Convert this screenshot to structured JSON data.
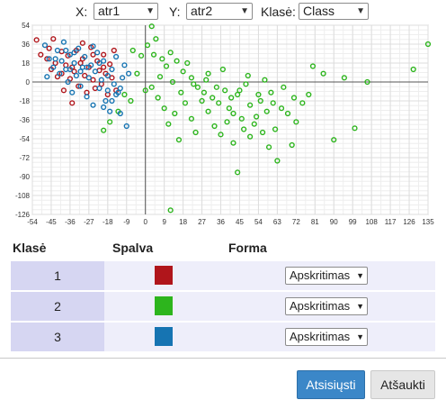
{
  "controls": {
    "x_label": "X:",
    "x_value": "atr1",
    "y_label": "Y:",
    "y_value": "atr2",
    "class_label": "Klasė:",
    "class_value": "Class"
  },
  "chart_data": {
    "type": "scatter",
    "xlim": [
      -54,
      135
    ],
    "ylim": [
      -126,
      54
    ],
    "x_ticks": [
      -54,
      -45,
      -36,
      -27,
      -18,
      -9,
      0,
      9,
      18,
      27,
      36,
      45,
      54,
      63,
      72,
      81,
      90,
      99,
      108,
      117,
      126,
      135
    ],
    "y_ticks": [
      54,
      36,
      18,
      0,
      -18,
      -36,
      -54,
      -72,
      -90,
      -108,
      -126
    ],
    "grid": true,
    "series": [
      {
        "class": "1",
        "color": "#b0151b",
        "points": [
          [
            -52,
            40
          ],
          [
            -50,
            26
          ],
          [
            -47,
            22
          ],
          [
            -45,
            12
          ],
          [
            -44,
            41
          ],
          [
            -43,
            18
          ],
          [
            -42,
            5
          ],
          [
            -40,
            29
          ],
          [
            -39,
            -8
          ],
          [
            -38,
            16
          ],
          [
            -37,
            25
          ],
          [
            -36,
            3
          ],
          [
            -35,
            -20
          ],
          [
            -34,
            10
          ],
          [
            -33,
            30
          ],
          [
            -32,
            -4
          ],
          [
            -31,
            18
          ],
          [
            -30,
            22
          ],
          [
            -29,
            6
          ],
          [
            -28,
            -10
          ],
          [
            -27,
            14
          ],
          [
            -26,
            33
          ],
          [
            -25,
            2
          ],
          [
            -24,
            -6
          ],
          [
            -23,
            20
          ],
          [
            -22,
            11
          ],
          [
            -21,
            -2
          ],
          [
            -20,
            26
          ],
          [
            -19,
            8
          ],
          [
            -18,
            -12
          ],
          [
            -17,
            17
          ],
          [
            -16,
            4
          ],
          [
            -15,
            30
          ],
          [
            -14,
            -8
          ],
          [
            -40,
            8
          ],
          [
            -46,
            32
          ],
          [
            -30,
            37
          ],
          [
            -35,
            14
          ],
          [
            -25,
            26
          ],
          [
            -20,
            14
          ]
        ]
      },
      {
        "class": "2",
        "color": "#2db51d",
        "points": [
          [
            2,
            60
          ],
          [
            3,
            53
          ],
          [
            5,
            41
          ],
          [
            1,
            35
          ],
          [
            -2,
            25
          ],
          [
            -6,
            30
          ],
          [
            4,
            26
          ],
          [
            8,
            22
          ],
          [
            10,
            15
          ],
          [
            12,
            28
          ],
          [
            15,
            20
          ],
          [
            18,
            10
          ],
          [
            20,
            18
          ],
          [
            22,
            4
          ],
          [
            25,
            -5
          ],
          [
            28,
            -10
          ],
          [
            30,
            8
          ],
          [
            32,
            -15
          ],
          [
            35,
            -20
          ],
          [
            38,
            -8
          ],
          [
            40,
            -25
          ],
          [
            42,
            -30
          ],
          [
            44,
            -12
          ],
          [
            46,
            -35
          ],
          [
            48,
            -2
          ],
          [
            50,
            -22
          ],
          [
            52,
            -40
          ],
          [
            55,
            -18
          ],
          [
            58,
            -28
          ],
          [
            60,
            -10
          ],
          [
            62,
            -45
          ],
          [
            65,
            -25
          ],
          [
            68,
            -30
          ],
          [
            70,
            -60
          ],
          [
            72,
            -38
          ],
          [
            75,
            -20
          ],
          [
            78,
            -12
          ],
          [
            80,
            15
          ],
          [
            85,
            8
          ],
          [
            90,
            -55
          ],
          [
            95,
            4
          ],
          [
            100,
            -44
          ],
          [
            106,
            0
          ],
          [
            128,
            12
          ],
          [
            135,
            36
          ],
          [
            3,
            -5
          ],
          [
            6,
            -15
          ],
          [
            9,
            -25
          ],
          [
            11,
            -40
          ],
          [
            14,
            -30
          ],
          [
            16,
            -55
          ],
          [
            19,
            -20
          ],
          [
            22,
            -35
          ],
          [
            24,
            -48
          ],
          [
            27,
            -18
          ],
          [
            30,
            -28
          ],
          [
            33,
            -42
          ],
          [
            36,
            -50
          ],
          [
            39,
            -38
          ],
          [
            42,
            -58
          ],
          [
            44,
            -86
          ],
          [
            47,
            -45
          ],
          [
            50,
            -52
          ],
          [
            53,
            -33
          ],
          [
            56,
            -48
          ],
          [
            59,
            -62
          ],
          [
            63,
            -75
          ],
          [
            12,
            -122
          ],
          [
            -7,
            -18
          ],
          [
            -13,
            -28
          ],
          [
            -17,
            -38
          ],
          [
            -20,
            -46
          ],
          [
            -10,
            -12
          ],
          [
            -4,
            8
          ],
          [
            0,
            -8
          ],
          [
            7,
            5
          ],
          [
            13,
            0
          ],
          [
            17,
            -10
          ],
          [
            23,
            -2
          ],
          [
            29,
            2
          ],
          [
            34,
            -5
          ],
          [
            37,
            12
          ],
          [
            41,
            -15
          ],
          [
            45,
            -8
          ],
          [
            49,
            6
          ],
          [
            54,
            -12
          ],
          [
            57,
            2
          ],
          [
            61,
            -20
          ],
          [
            66,
            -5
          ],
          [
            71,
            -15
          ]
        ]
      },
      {
        "class": "3",
        "color": "#1674b2",
        "points": [
          [
            -48,
            35
          ],
          [
            -46,
            22
          ],
          [
            -44,
            14
          ],
          [
            -42,
            30
          ],
          [
            -41,
            8
          ],
          [
            -40,
            20
          ],
          [
            -39,
            38
          ],
          [
            -38,
            12
          ],
          [
            -37,
            0
          ],
          [
            -36,
            26
          ],
          [
            -35,
            -10
          ],
          [
            -34,
            18
          ],
          [
            -33,
            6
          ],
          [
            -32,
            32
          ],
          [
            -31,
            -4
          ],
          [
            -30,
            14
          ],
          [
            -29,
            24
          ],
          [
            -28,
            -14
          ],
          [
            -27,
            4
          ],
          [
            -26,
            16
          ],
          [
            -25,
            -22
          ],
          [
            -24,
            10
          ],
          [
            -23,
            28
          ],
          [
            -22,
            -6
          ],
          [
            -21,
            2
          ],
          [
            -20,
            20
          ],
          [
            -19,
            -18
          ],
          [
            -18,
            6
          ],
          [
            -17,
            -28
          ],
          [
            -16,
            12
          ],
          [
            -15,
            -2
          ],
          [
            -14,
            24
          ],
          [
            -13,
            -10
          ],
          [
            -12,
            -30
          ],
          [
            -11,
            4
          ],
          [
            -10,
            16
          ],
          [
            -9,
            -42
          ],
          [
            -8,
            8
          ],
          [
            -14,
            -12
          ],
          [
            -18,
            -8
          ],
          [
            -28,
            14
          ],
          [
            -34,
            28
          ],
          [
            -43,
            22
          ],
          [
            -38,
            30
          ],
          [
            -31,
            10
          ],
          [
            -25,
            34
          ],
          [
            -22,
            18
          ],
          [
            -16,
            -18
          ],
          [
            -12,
            -6
          ],
          [
            -20,
            -24
          ],
          [
            -47,
            5
          ],
          [
            -36,
            12
          ]
        ]
      }
    ]
  },
  "table": {
    "headers": [
      "Klasė",
      "Spalva",
      "Forma"
    ],
    "rows": [
      {
        "class": "1",
        "color": "#b0151b",
        "shape": "Apskritimas"
      },
      {
        "class": "2",
        "color": "#2db51d",
        "shape": "Apskritimas"
      },
      {
        "class": "3",
        "color": "#1674b2",
        "shape": "Apskritimas"
      }
    ]
  },
  "buttons": {
    "download": "Atsisiųsti",
    "cancel": "Atšaukti"
  }
}
